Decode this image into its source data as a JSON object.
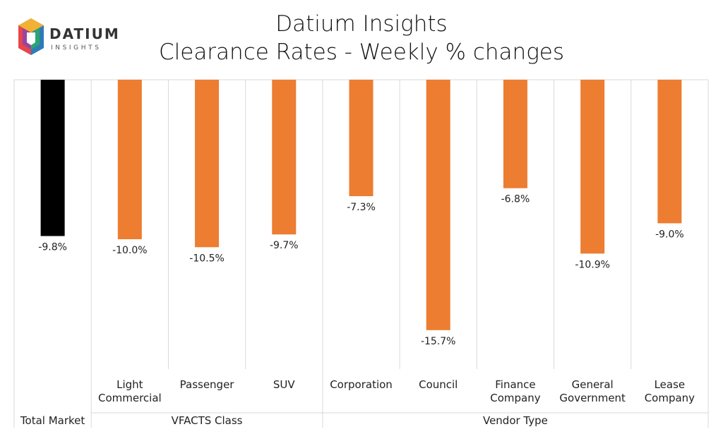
{
  "logo": {
    "name": "DATIUM",
    "tagline": "INSIGHTS"
  },
  "header": {
    "title": "Datium Insights",
    "subtitle": "Clearance Rates - Weekly % changes"
  },
  "colors": {
    "total_bar": "#000000",
    "segment_bar": "#ED7D31",
    "grid": "#D9D9D9"
  },
  "chart_data": {
    "type": "bar",
    "title": "Datium Insights",
    "subtitle": "Clearance Rates - Weekly % changes",
    "ylim": [
      -20,
      0
    ],
    "categories": [
      {
        "label": [
          "Total Market"
        ],
        "value": -9.8,
        "label_text": "-9.8%",
        "group": 0,
        "highlight": true
      },
      {
        "label": [
          "Light",
          "Commercial"
        ],
        "value": -10.0,
        "label_text": "-10.0%",
        "group": 1
      },
      {
        "label": [
          "Passenger"
        ],
        "value": -10.5,
        "label_text": "-10.5%",
        "group": 1
      },
      {
        "label": [
          "SUV"
        ],
        "value": -9.7,
        "label_text": "-9.7%",
        "group": 1
      },
      {
        "label": [
          "Corporation"
        ],
        "value": -7.3,
        "label_text": "-7.3%",
        "group": 2
      },
      {
        "label": [
          "Council"
        ],
        "value": -15.7,
        "label_text": "-15.7%",
        "group": 2
      },
      {
        "label": [
          "Finance",
          "Company"
        ],
        "value": -6.8,
        "label_text": "-6.8%",
        "group": 2
      },
      {
        "label": [
          "General",
          "Government"
        ],
        "value": -10.9,
        "label_text": "-10.9%",
        "group": 2
      },
      {
        "label": [
          "Lease",
          "Company"
        ],
        "value": -9.0,
        "label_text": "-9.0%",
        "group": 2
      }
    ],
    "groups": [
      "",
      "VFACTS Class",
      "Vendor Type"
    ],
    "grid": true,
    "legend": "none"
  }
}
